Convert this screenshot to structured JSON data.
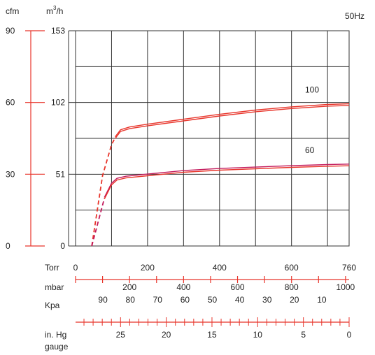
{
  "chart_data": {
    "type": "line",
    "title": "",
    "frequency_label": "50Hz",
    "y_axes": {
      "cfm": {
        "unit": "cfm",
        "ticks": [
          "0",
          "30",
          "60",
          "90"
        ],
        "values": [
          0,
          30,
          60,
          90
        ],
        "color": "#e8352b"
      },
      "m3h": {
        "unit_base": "m",
        "unit_sup": "3",
        "unit_tail": "/h",
        "ticks": [
          "0",
          "51",
          "102",
          "153"
        ],
        "values": [
          0,
          51,
          102,
          153
        ],
        "ylim": [
          0,
          153
        ]
      }
    },
    "x_axes": {
      "torr": {
        "unit": "Torr",
        "ticks": [
          "0",
          "200",
          "400",
          "600",
          "760"
        ],
        "values": [
          0,
          200,
          400,
          600,
          760
        ],
        "xlim": [
          0,
          760
        ]
      },
      "mbar": {
        "unit": "mbar",
        "ticks": [
          "200",
          "400",
          "600",
          "800",
          "1000"
        ],
        "values": [
          200,
          400,
          600,
          800,
          1000
        ]
      },
      "kpa": {
        "unit": "Kpa",
        "ticks": [
          "90",
          "80",
          "70",
          "60",
          "50",
          "40",
          "30",
          "20",
          "10"
        ],
        "values": [
          90,
          80,
          70,
          60,
          50,
          40,
          30,
          20,
          10
        ]
      },
      "inhg": {
        "unit_line1": "in. Hg",
        "unit_line2": "gauge",
        "ticks": [
          "25",
          "20",
          "15",
          "10",
          "5",
          "0"
        ],
        "values": [
          25,
          20,
          15,
          10,
          5,
          0
        ]
      }
    },
    "grid": true,
    "series": [
      {
        "name": "100",
        "color": "#e8352b",
        "dashed": {
          "x": [
            45,
            75,
            100,
            110
          ],
          "y": [
            0,
            50,
            72,
            77
          ]
        },
        "solid": {
          "x": [
            110,
            125,
            150,
            200,
            300,
            400,
            500,
            600,
            700,
            760
          ],
          "y": [
            77,
            82,
            84,
            86,
            89.5,
            93,
            96,
            98.3,
            100,
            100.5
          ]
        }
      },
      {
        "name": "60",
        "color": "#c2185b",
        "dashed": {
          "x": [
            45,
            80
          ],
          "y": [
            0,
            34
          ]
        },
        "solid": {
          "x": [
            80,
            100,
            115,
            140,
            200,
            300,
            400,
            500,
            600,
            700,
            760
          ],
          "y": [
            34,
            44,
            47.5,
            49,
            50.5,
            53,
            54.5,
            55.5,
            56.5,
            57.3,
            57.6
          ]
        }
      }
    ]
  }
}
